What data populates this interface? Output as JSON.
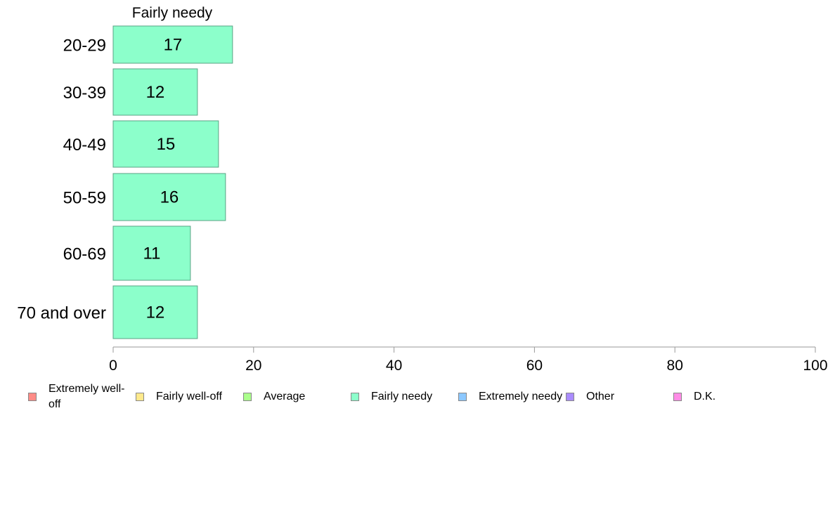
{
  "chart_data": {
    "type": "bar",
    "orientation": "horizontal",
    "panel_title": "Fairly needy",
    "categories": [
      "20-29",
      "30-39",
      "40-49",
      "50-59",
      "60-69",
      "70 and over"
    ],
    "series": [
      {
        "name": "Fairly needy",
        "values": [
          17,
          12,
          15,
          16,
          11,
          12
        ]
      }
    ],
    "data_labels": [
      "17",
      "12",
      "15",
      "16",
      "11",
      "12"
    ],
    "xlim": [
      0,
      100
    ],
    "x_ticks": [
      0,
      20,
      40,
      60,
      80,
      100
    ],
    "x_tick_labels": [
      "0",
      "20",
      "40",
      "60",
      "80",
      "100"
    ],
    "grid": false,
    "legend_position": "bottom",
    "legend": [
      {
        "label": "Extremely well-off",
        "color": "#ff8c87"
      },
      {
        "label": "Fairly well-off",
        "color": "#ffe98c"
      },
      {
        "label": "Average",
        "color": "#abff8c"
      },
      {
        "label": "Fairly needy",
        "color": "#8cffcb"
      },
      {
        "label": "Extremely needy",
        "color": "#8cc8ff"
      },
      {
        "label": "Other",
        "color": "#aa8cff"
      },
      {
        "label": "D.K.",
        "color": "#ff8ce6"
      }
    ],
    "bar_color": "#8cffcb",
    "bar_stroke": "#5aa384",
    "axis_color": "#999999"
  }
}
